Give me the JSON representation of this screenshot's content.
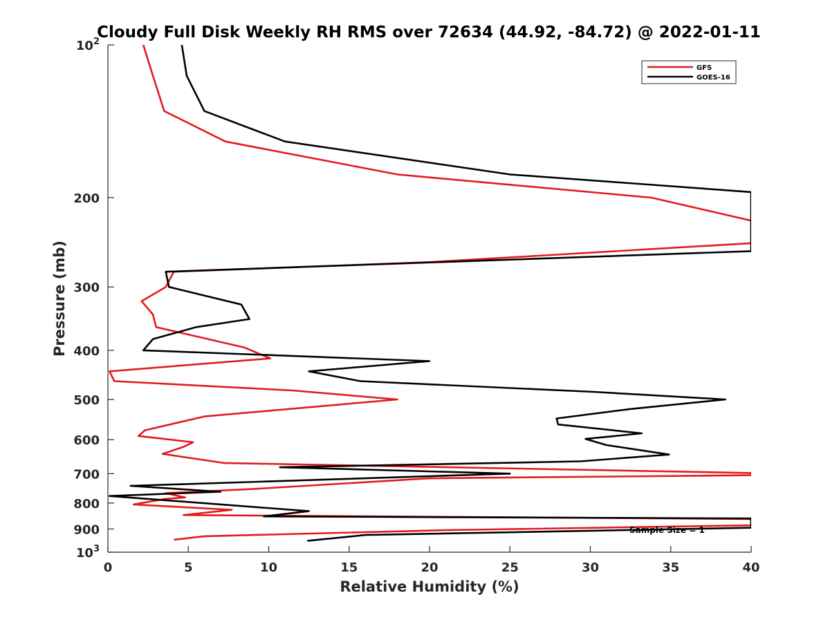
{
  "chart_data": {
    "type": "line",
    "title": "Cloudy Full Disk Weekly RH RMS over 72634 (44.92, -84.72) @ 2022-01-11",
    "xlabel": "Relative Humidity (%)",
    "ylabel": "Pressure (mb)",
    "xlim": [
      0,
      40
    ],
    "ylim": [
      100,
      1000
    ],
    "yscale": "log",
    "yreversed": true,
    "grid": false,
    "legend_position": "top-right",
    "x_ticks": [
      "0",
      "5",
      "10",
      "15",
      "20",
      "25",
      "30",
      "35",
      "40"
    ],
    "y_ticks": [
      {
        "value": 100,
        "base": "10",
        "exp": "2"
      },
      {
        "value": 200,
        "label": "200"
      },
      {
        "value": 300,
        "label": "300"
      },
      {
        "value": 400,
        "label": "400"
      },
      {
        "value": 500,
        "label": "500"
      },
      {
        "value": 600,
        "label": "600"
      },
      {
        "value": 700,
        "label": "700"
      },
      {
        "value": 800,
        "label": "800"
      },
      {
        "value": 900,
        "label": "900"
      },
      {
        "value": 1000,
        "base": "10",
        "exp": "3"
      }
    ],
    "annotation": "Sample Size = 1",
    "series": [
      {
        "name": "GFS",
        "color": "#e31a1c",
        "points": [
          [
            2.2,
            100
          ],
          [
            2.8,
            115
          ],
          [
            3.5,
            135
          ],
          [
            7.3,
            155
          ],
          [
            18,
            180
          ],
          [
            33.8,
            200
          ],
          [
            40,
            222
          ],
          [
            40,
            246
          ],
          [
            20,
            268
          ],
          [
            4.1,
            280
          ],
          [
            3.6,
            300
          ],
          [
            2.1,
            320
          ],
          [
            2.8,
            340
          ],
          [
            3.0,
            360
          ],
          [
            8.5,
            395
          ],
          [
            10.1,
            415
          ],
          [
            0.1,
            440
          ],
          [
            0.4,
            460
          ],
          [
            11.5,
            480
          ],
          [
            18.0,
            500
          ],
          [
            6.0,
            540
          ],
          [
            2.3,
            575
          ],
          [
            1.9,
            590
          ],
          [
            5.3,
            607
          ],
          [
            4.7,
            620
          ],
          [
            3.4,
            640
          ],
          [
            7.2,
            667
          ],
          [
            40,
            698
          ],
          [
            40,
            705
          ],
          [
            20,
            715
          ],
          [
            9.2,
            750
          ],
          [
            3.6,
            765
          ],
          [
            4.8,
            780
          ],
          [
            3.6,
            785
          ],
          [
            1.6,
            805
          ],
          [
            7.7,
            825
          ],
          [
            4.7,
            845
          ],
          [
            40,
            860
          ],
          [
            40,
            885
          ],
          [
            20.8,
            905
          ],
          [
            6.0,
            930
          ],
          [
            4.1,
            945
          ]
        ]
      },
      {
        "name": "GOES-16",
        "color": "#000000",
        "points": [
          [
            4.6,
            100
          ],
          [
            4.9,
            115
          ],
          [
            6.0,
            135
          ],
          [
            11.0,
            155
          ],
          [
            25,
            180
          ],
          [
            40,
            195
          ],
          [
            40,
            255
          ],
          [
            3.6,
            280
          ],
          [
            3.8,
            300
          ],
          [
            8.3,
            325
          ],
          [
            8.8,
            347
          ],
          [
            5.5,
            360
          ],
          [
            2.8,
            380
          ],
          [
            2.2,
            400
          ],
          [
            20,
            420
          ],
          [
            12.5,
            440
          ],
          [
            15.7,
            460
          ],
          [
            30.2,
            483
          ],
          [
            38.4,
            500
          ],
          [
            32.5,
            522
          ],
          [
            27.9,
            545
          ],
          [
            28.0,
            560
          ],
          [
            33.2,
            583
          ],
          [
            29.7,
            598
          ],
          [
            31.0,
            615
          ],
          [
            34.9,
            642
          ],
          [
            29.4,
            662
          ],
          [
            10.7,
            680
          ],
          [
            25.0,
            700
          ],
          [
            1.4,
            740
          ],
          [
            7.0,
            760
          ],
          [
            0.1,
            775
          ],
          [
            12.5,
            830
          ],
          [
            9.7,
            850
          ],
          [
            40,
            858
          ],
          [
            40,
            895
          ],
          [
            16.0,
            925
          ],
          [
            12.4,
            950
          ]
        ]
      }
    ]
  }
}
